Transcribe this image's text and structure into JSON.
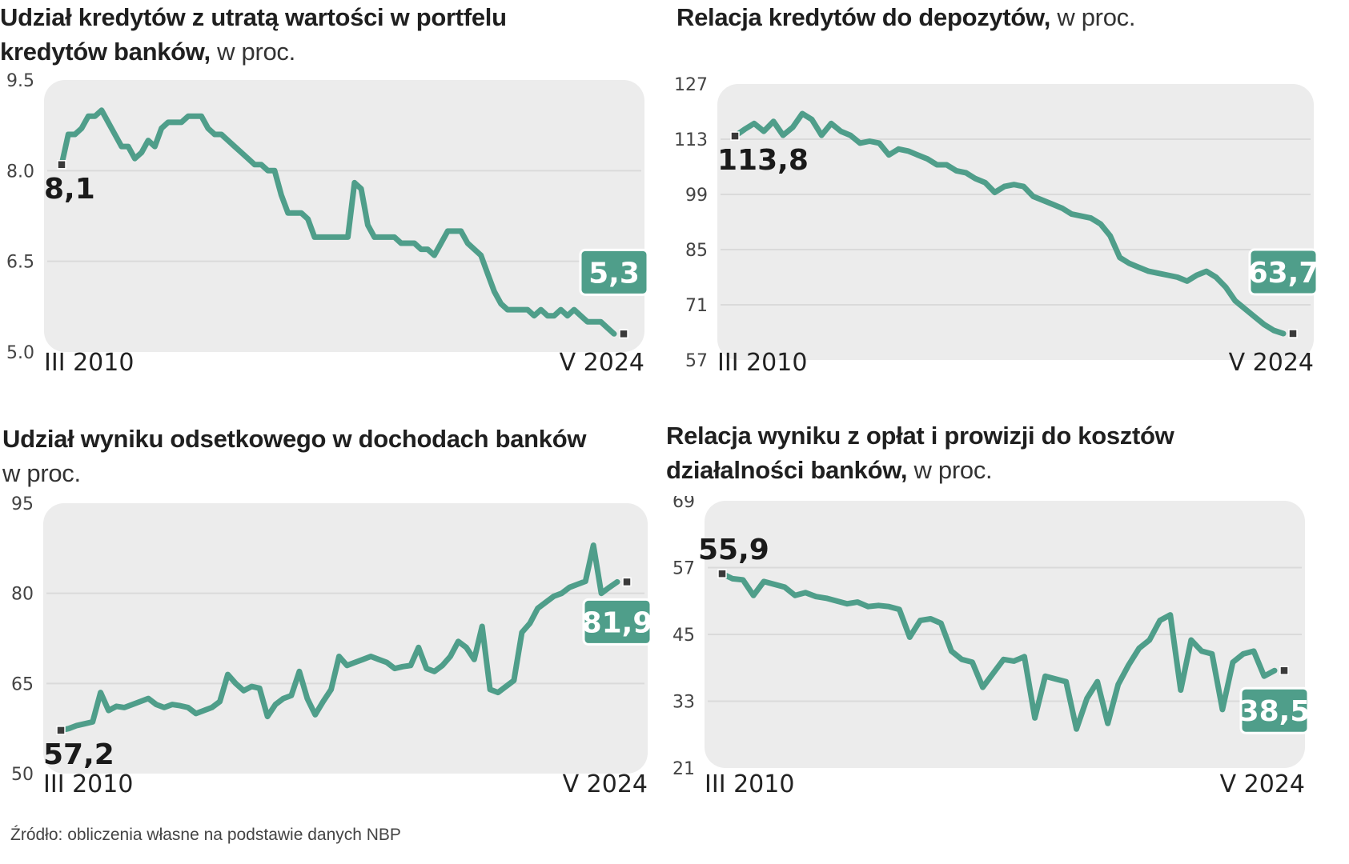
{
  "colors": {
    "line": "#4f9e8a",
    "label_bg": "#4f9e8a",
    "plot_bg": "#ececec",
    "grid": "#dadada",
    "marker": "#3a3a3a"
  },
  "source": "Źródło: obliczenia własne na podstawie danych NBP",
  "chart_data": [
    {
      "type": "line",
      "title_bold": "Udział kredytów z utratą wartości w portfelu kredytów banków,",
      "title_light": "w proc.",
      "x_start_label": "III 2010",
      "x_end_label": "V 2024",
      "ylim": [
        5.0,
        9.5
      ],
      "yticks": [
        "9.5",
        "8.0",
        "6.5",
        "5.0"
      ],
      "start_value": "8,1",
      "end_value": "5,3",
      "series": [
        {
          "name": "impaired_loans_share",
          "values": [
            8.1,
            8.6,
            8.6,
            8.7,
            8.9,
            8.9,
            9.0,
            8.8,
            8.6,
            8.4,
            8.4,
            8.2,
            8.3,
            8.5,
            8.4,
            8.7,
            8.8,
            8.8,
            8.8,
            8.9,
            8.9,
            8.9,
            8.7,
            8.6,
            8.6,
            8.5,
            8.4,
            8.3,
            8.2,
            8.1,
            8.1,
            8.0,
            8.0,
            7.6,
            7.3,
            7.3,
            7.3,
            7.2,
            6.9,
            6.9,
            6.9,
            6.9,
            6.9,
            6.9,
            7.8,
            7.7,
            7.1,
            6.9,
            6.9,
            6.9,
            6.9,
            6.8,
            6.8,
            6.8,
            6.7,
            6.7,
            6.6,
            6.8,
            7.0,
            7.0,
            7.0,
            6.8,
            6.7,
            6.6,
            6.3,
            6.0,
            5.8,
            5.7,
            5.7,
            5.7,
            5.7,
            5.6,
            5.7,
            5.6,
            5.6,
            5.7,
            5.6,
            5.7,
            5.6,
            5.5,
            5.5,
            5.5,
            5.4,
            5.3
          ]
        }
      ]
    },
    {
      "type": "line",
      "title_bold": "Relacja kredytów do depozytów,",
      "title_light": "w proc.",
      "x_start_label": "III 2010",
      "x_end_label": "V 2024",
      "ylim": [
        57,
        127
      ],
      "yticks": [
        "127",
        "113",
        "99",
        "85",
        "71",
        "57"
      ],
      "start_value": "113,8",
      "end_value": "63,7",
      "series": [
        {
          "name": "loans_to_deposits",
          "values": [
            113.8,
            115.5,
            117.0,
            115.0,
            117.5,
            114.0,
            116.0,
            119.5,
            118.0,
            114.0,
            117.0,
            115.0,
            114.0,
            112.0,
            112.5,
            112.0,
            109.0,
            110.5,
            110.0,
            109.0,
            108.0,
            106.5,
            106.5,
            105.0,
            104.5,
            103.0,
            102.0,
            99.5,
            101.0,
            101.5,
            101.0,
            98.5,
            97.5,
            96.5,
            95.5,
            94.0,
            93.5,
            93.0,
            91.5,
            88.5,
            83.0,
            81.5,
            80.5,
            79.5,
            79.0,
            78.5,
            78.0,
            77.0,
            78.5,
            79.5,
            78.0,
            75.5,
            72.0,
            70.0,
            68.0,
            66.0,
            64.5,
            63.7
          ]
        }
      ]
    },
    {
      "type": "line",
      "title_bold": "Udział wyniku odsetkowego w dochodach banków",
      "title_light": "w proc.",
      "x_start_label": "III 2010",
      "x_end_label": "V 2024",
      "ylim": [
        50,
        95
      ],
      "yticks": [
        "95",
        "80",
        "65",
        "50"
      ],
      "start_value": "57,2",
      "end_value": "81,9",
      "series": [
        {
          "name": "interest_income_share",
          "values": [
            57.2,
            57.5,
            58.0,
            58.3,
            58.6,
            63.5,
            60.5,
            61.2,
            61.0,
            61.5,
            62.0,
            62.5,
            61.5,
            61.0,
            61.5,
            61.3,
            61.0,
            60.0,
            60.5,
            61.0,
            62.0,
            66.5,
            65.0,
            63.8,
            64.5,
            64.2,
            59.5,
            61.5,
            62.5,
            63.0,
            67.0,
            62.5,
            59.8,
            62.0,
            64.0,
            69.5,
            68.0,
            68.5,
            69.0,
            69.5,
            69.0,
            68.5,
            67.5,
            67.8,
            68.0,
            71.0,
            67.5,
            67.0,
            68.0,
            69.5,
            72.0,
            71.0,
            69.0,
            74.5,
            64.0,
            63.5,
            64.5,
            65.5,
            73.5,
            75.0,
            77.5,
            78.5,
            79.5,
            80.0,
            81.0,
            81.5,
            82.0,
            88.0,
            80.0,
            81.0,
            81.9
          ]
        }
      ]
    },
    {
      "type": "line",
      "title_bold": "Relacja wyniku z opłat i prowizji do kosztów działalności banków,",
      "title_light": "w proc.",
      "x_start_label": "III 2010",
      "x_end_label": "V 2024",
      "ylim": [
        21,
        69
      ],
      "yticks": [
        "69",
        "57",
        "45",
        "33",
        "21"
      ],
      "start_value": "55,9",
      "end_value": "38,5",
      "series": [
        {
          "name": "fees_to_costs",
          "values": [
            55.9,
            55.0,
            54.8,
            52.0,
            54.5,
            54.0,
            53.5,
            52.0,
            52.5,
            51.8,
            51.5,
            51.0,
            50.5,
            50.8,
            50.0,
            50.2,
            50.0,
            49.5,
            44.5,
            47.5,
            47.8,
            47.0,
            42.0,
            40.5,
            40.0,
            35.5,
            38.0,
            40.5,
            40.2,
            41.0,
            30.0,
            37.5,
            37.0,
            36.5,
            28.0,
            33.5,
            36.5,
            29.0,
            36.0,
            39.5,
            42.5,
            44.0,
            47.5,
            48.5,
            35.0,
            44.0,
            42.0,
            41.5,
            31.5,
            40.0,
            41.5,
            42.0,
            37.5,
            38.5
          ]
        }
      ]
    }
  ]
}
